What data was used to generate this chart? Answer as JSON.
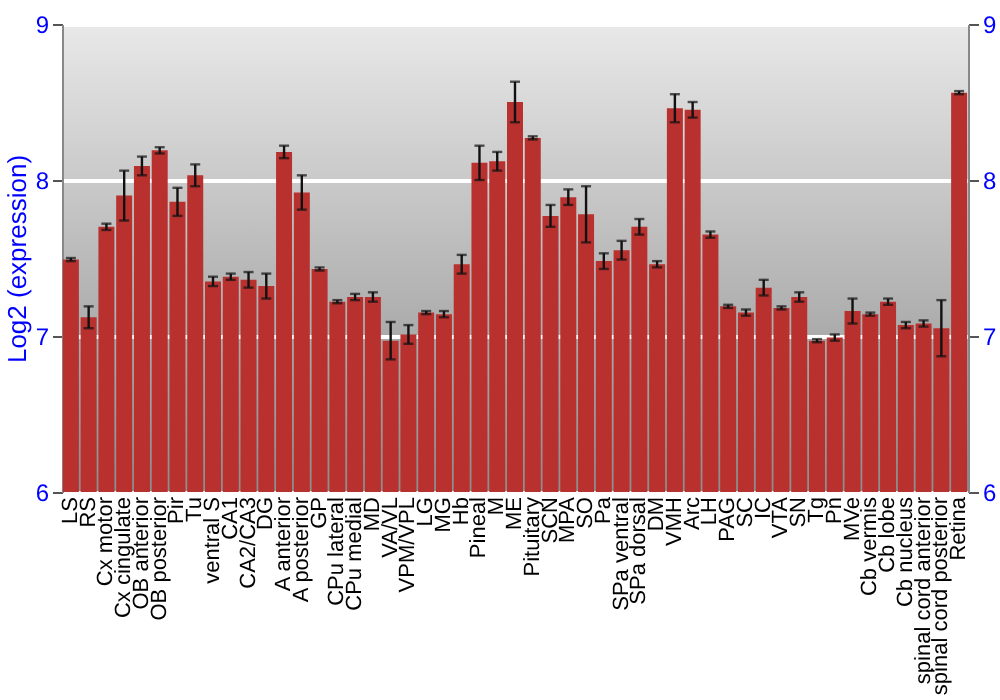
{
  "chart_data": {
    "type": "bar",
    "ylabel": "Log2 (expression)",
    "categories": [
      "LS",
      "RS",
      "Cx motor",
      "Cx cingulate",
      "OB anterior",
      "OB posterior",
      "Pir",
      "Tu",
      "ventral S",
      "CA1",
      "CA2/CA3",
      "DG",
      "A anterior",
      "A posterior",
      "GP",
      "CPu lateral",
      "CPu medial",
      "MD",
      "VA/VL",
      "VPM/VPL",
      "LG",
      "MG",
      "Hb",
      "Pineal",
      "M",
      "ME",
      "Pituitary",
      "SCN",
      "MPA",
      "SO",
      "Pa",
      "SPa ventral",
      "SPa dorsal",
      "DM",
      "VMH",
      "Arc",
      "LH",
      "PAG",
      "SC",
      "IC",
      "VTA",
      "SN",
      "Tg",
      "Pn",
      "MVe",
      "Cb vermis",
      "Cb lobe",
      "Cb nucleus",
      "spinal cord anterior",
      "spinal cord posterior",
      "Retina"
    ],
    "values": [
      7.49,
      7.12,
      7.7,
      7.9,
      8.09,
      8.19,
      7.86,
      8.03,
      7.35,
      7.38,
      7.36,
      7.32,
      8.18,
      7.92,
      7.43,
      7.22,
      7.25,
      7.25,
      6.97,
      7.01,
      7.15,
      7.14,
      7.46,
      8.11,
      8.12,
      8.5,
      8.27,
      7.77,
      7.89,
      7.78,
      7.48,
      7.55,
      7.7,
      7.46,
      8.46,
      8.45,
      7.65,
      7.19,
      7.15,
      7.31,
      7.18,
      7.25,
      6.97,
      6.99,
      7.16,
      7.14,
      7.22,
      7.07,
      7.08,
      7.05,
      8.56
    ],
    "errors": [
      0.01,
      0.07,
      0.02,
      0.16,
      0.06,
      0.02,
      0.09,
      0.07,
      0.03,
      0.02,
      0.05,
      0.08,
      0.04,
      0.11,
      0.01,
      0.01,
      0.02,
      0.03,
      0.12,
      0.06,
      0.01,
      0.02,
      0.06,
      0.11,
      0.06,
      0.13,
      0.01,
      0.07,
      0.05,
      0.18,
      0.05,
      0.06,
      0.05,
      0.02,
      0.09,
      0.05,
      0.02,
      0.01,
      0.02,
      0.05,
      0.01,
      0.03,
      0.01,
      0.02,
      0.08,
      0.01,
      0.02,
      0.02,
      0.02,
      0.18,
      0.01
    ],
    "color": "#b8312f",
    "ylim": [
      6,
      9
    ],
    "yticks": [
      6,
      7,
      8,
      9
    ],
    "y2lim": [
      6,
      9
    ],
    "y2ticks": [
      6,
      7,
      8,
      9
    ],
    "grid": "y"
  }
}
